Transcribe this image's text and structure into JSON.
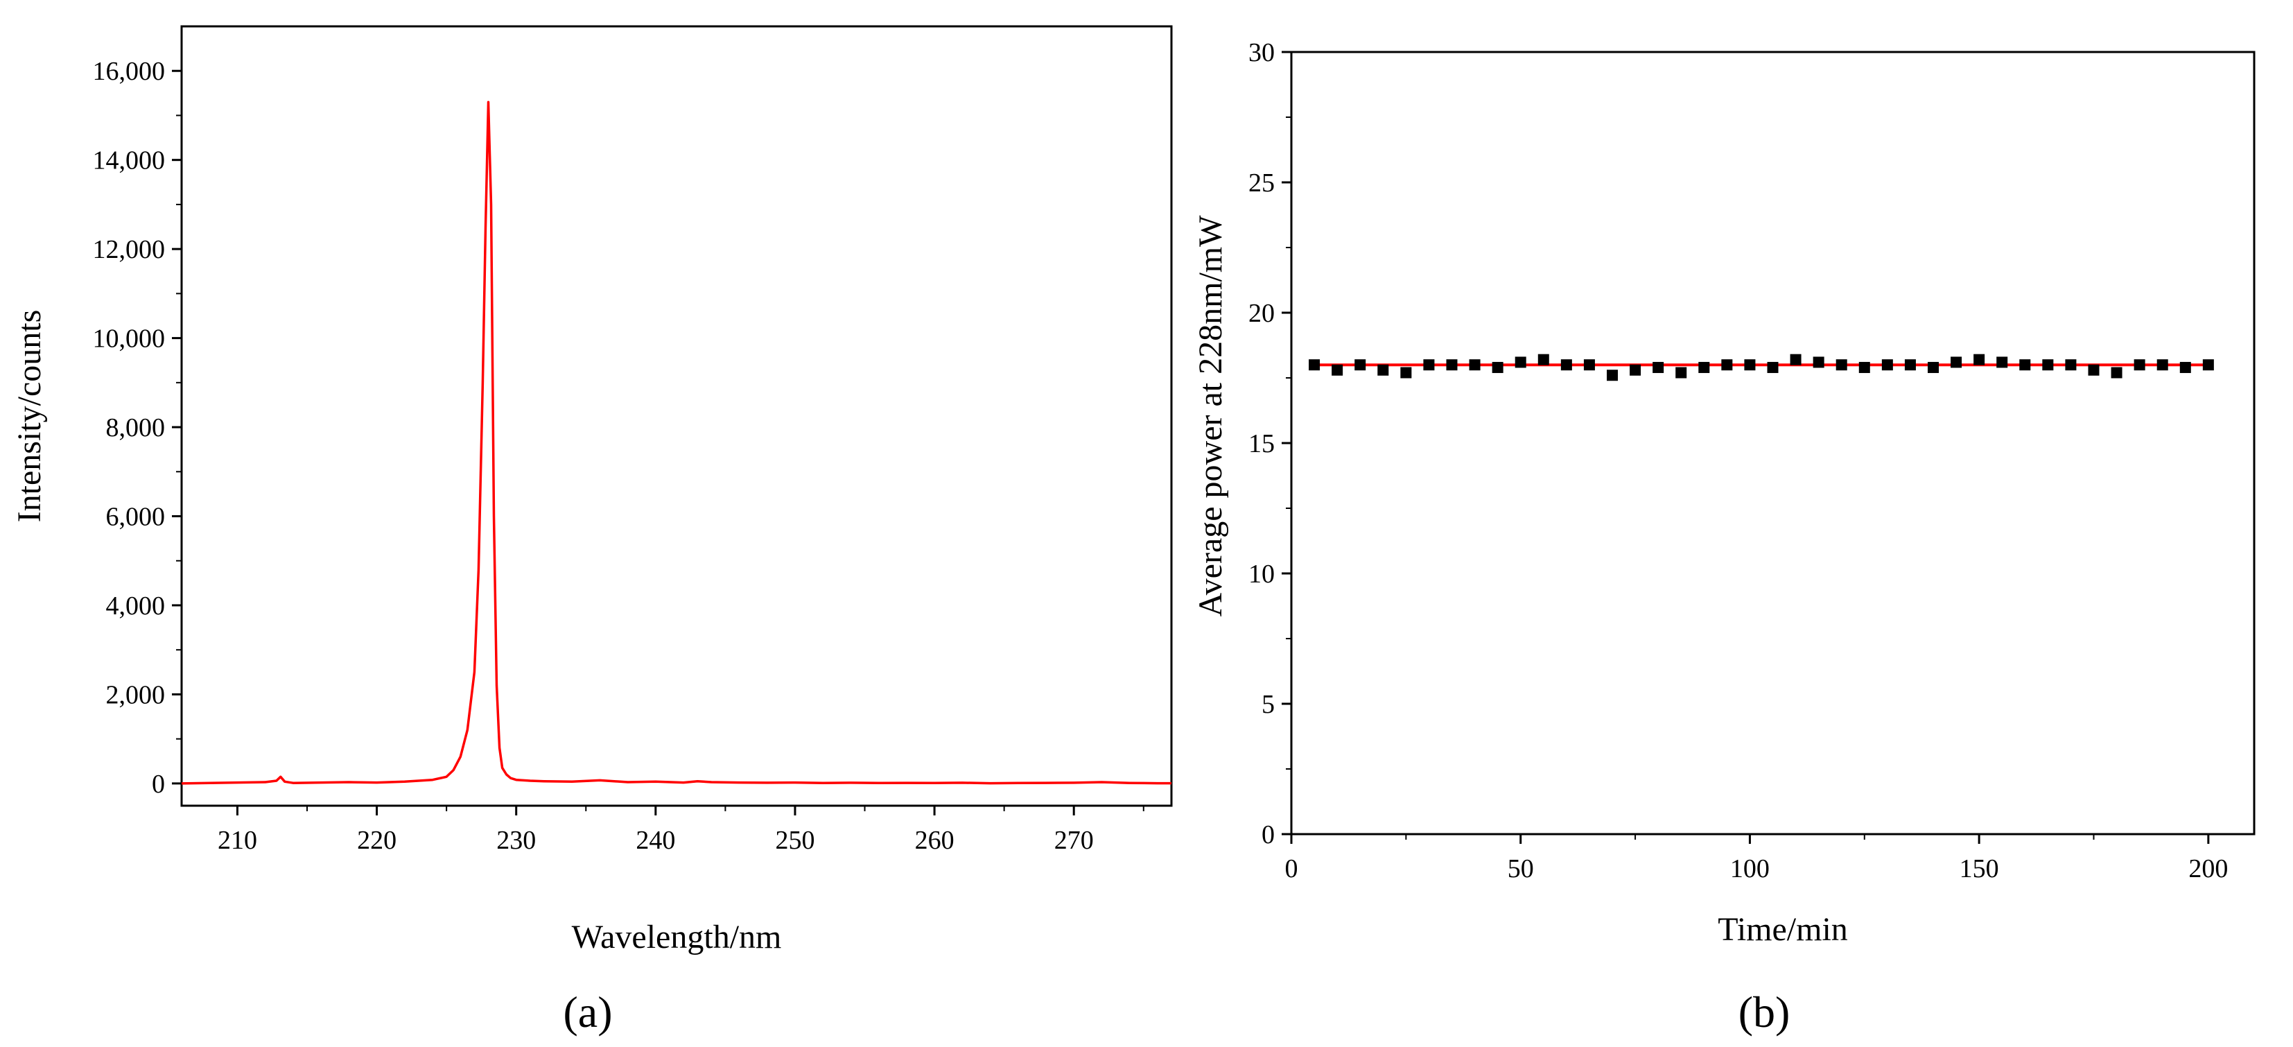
{
  "chart_data": [
    {
      "panel": "(a)",
      "type": "line",
      "xlabel": "Wavelength/nm",
      "ylabel": "Intensity/counts",
      "xlim": [
        206,
        277
      ],
      "ylim": [
        -500,
        17000
      ],
      "xticks": [
        210,
        220,
        230,
        240,
        250,
        260,
        270
      ],
      "yticks": [
        0,
        2000,
        4000,
        6000,
        8000,
        10000,
        12000,
        14000,
        16000
      ],
      "xtick_labels": [
        "210",
        "220",
        "230",
        "240",
        "250",
        "260",
        "270"
      ],
      "ytick_labels": [
        "0",
        "2,000",
        "4,000",
        "6,000",
        "8,000",
        "10,000",
        "12,000",
        "14,000",
        "16,000"
      ],
      "grid": false,
      "color": "#ff0000",
      "series": [
        {
          "x": [
            206,
            208,
            210,
            212,
            212.8,
            213.1,
            213.4,
            214,
            216,
            218,
            220,
            222,
            224,
            225,
            225.5,
            226,
            226.5,
            227,
            227.3,
            227.6,
            227.8,
            228.0,
            228.2,
            228.4,
            228.6,
            228.8,
            229.0,
            229.3,
            229.6,
            230,
            231,
            232,
            234,
            236,
            238,
            240,
            242,
            243,
            244,
            246,
            248,
            250,
            252,
            254,
            256,
            258,
            260,
            262,
            264,
            266,
            268,
            270,
            272,
            274,
            276,
            277
          ],
          "y": [
            0,
            10,
            20,
            30,
            60,
            150,
            40,
            10,
            20,
            30,
            20,
            40,
            80,
            150,
            300,
            600,
            1200,
            2500,
            4800,
            9000,
            12500,
            15300,
            13000,
            6000,
            2200,
            800,
            350,
            200,
            120,
            80,
            60,
            50,
            40,
            70,
            30,
            40,
            20,
            50,
            30,
            20,
            15,
            20,
            10,
            15,
            10,
            12,
            10,
            15,
            5,
            10,
            12,
            15,
            30,
            10,
            5,
            5
          ]
        }
      ]
    },
    {
      "panel": "(b)",
      "type": "scatter",
      "xlabel": "Time/min",
      "ylabel": "Average power at 228nm/mW",
      "xlim": [
        0,
        210
      ],
      "ylim": [
        0,
        30
      ],
      "xticks": [
        0,
        50,
        100,
        150,
        200
      ],
      "yticks": [
        0,
        5,
        10,
        15,
        20,
        25,
        30
      ],
      "xtick_labels": [
        "0",
        "50",
        "100",
        "150",
        "200"
      ],
      "ytick_labels": [
        "0",
        "5",
        "10",
        "15",
        "20",
        "25",
        "30"
      ],
      "grid": false,
      "fit_line": {
        "y": 18.0,
        "x_range": [
          5,
          200
        ],
        "color": "#ff0000"
      },
      "marker_color": "#000000",
      "series": [
        {
          "x": [
            5,
            10,
            15,
            20,
            25,
            30,
            35,
            40,
            45,
            50,
            55,
            60,
            65,
            70,
            75,
            80,
            85,
            90,
            95,
            100,
            105,
            110,
            115,
            120,
            125,
            130,
            135,
            140,
            145,
            150,
            155,
            160,
            165,
            170,
            175,
            180,
            185,
            190,
            195,
            200
          ],
          "y": [
            18.0,
            17.8,
            18.0,
            17.8,
            17.7,
            18.0,
            18.0,
            18.0,
            17.9,
            18.1,
            18.2,
            18.0,
            18.0,
            17.6,
            17.8,
            17.9,
            17.7,
            17.9,
            18.0,
            18.0,
            17.9,
            18.2,
            18.1,
            18.0,
            17.9,
            18.0,
            18.0,
            17.9,
            18.1,
            18.2,
            18.1,
            18.0,
            18.0,
            18.0,
            17.8,
            17.7,
            18.0,
            18.0,
            17.9,
            18.0
          ]
        }
      ]
    }
  ]
}
